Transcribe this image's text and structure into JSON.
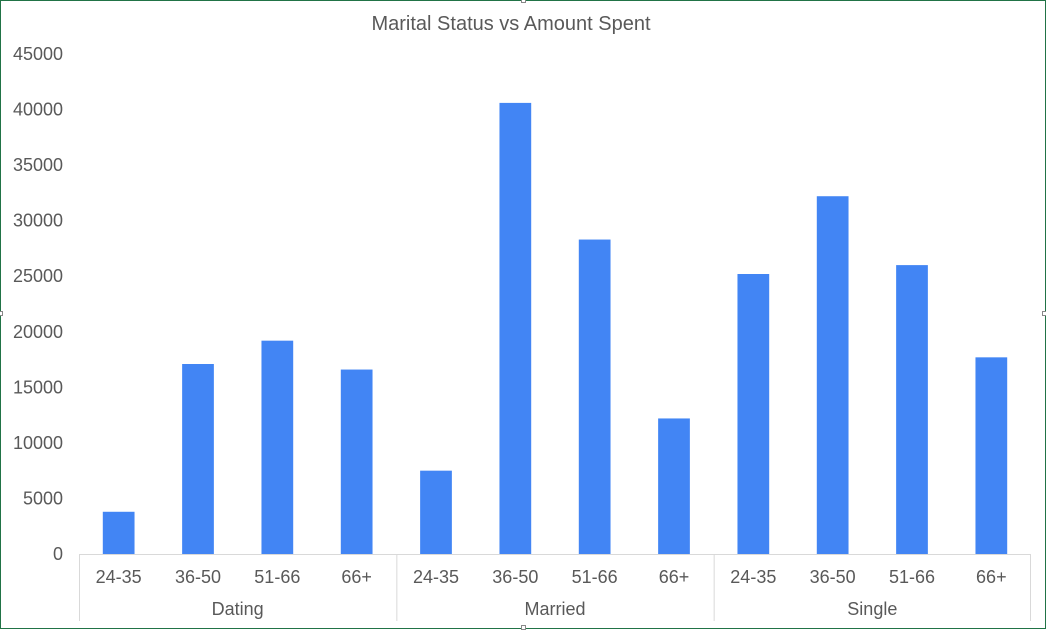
{
  "chart_data": {
    "type": "bar",
    "title": "Marital Status vs Amount Spent",
    "xlabel": "",
    "ylabel": "",
    "ylim": [
      0,
      45000
    ],
    "yticks": [
      0,
      5000,
      10000,
      15000,
      20000,
      25000,
      30000,
      35000,
      40000,
      45000
    ],
    "grid": false,
    "legend": "none",
    "bar_color": "#4285F4",
    "groups": [
      {
        "name": "Dating",
        "categories": [
          "24-35",
          "36-50",
          "51-66",
          "66+"
        ],
        "values": [
          3800,
          17100,
          19200,
          16600
        ]
      },
      {
        "name": "Married",
        "categories": [
          "24-35",
          "36-50",
          "51-66",
          "66+"
        ],
        "values": [
          7500,
          40600,
          28300,
          12200
        ]
      },
      {
        "name": "Single",
        "categories": [
          "24-35",
          "36-50",
          "51-66",
          "66+"
        ],
        "values": [
          25200,
          32200,
          26000,
          17700
        ]
      }
    ]
  }
}
